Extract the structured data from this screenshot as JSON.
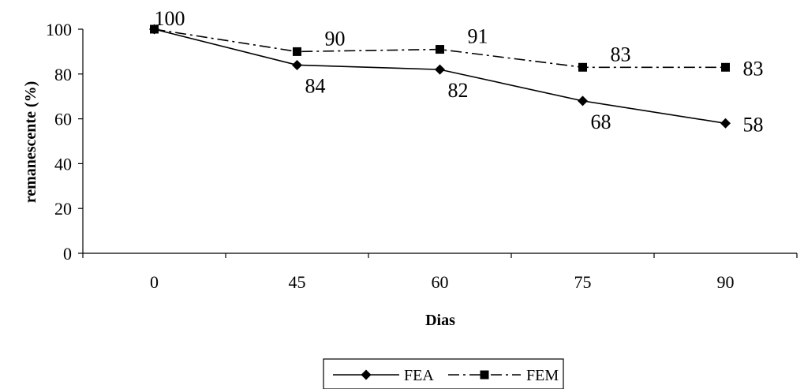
{
  "chart_data": {
    "type": "line",
    "categories": [
      "0",
      "45",
      "60",
      "75",
      "90"
    ],
    "series": [
      {
        "name": "FEA",
        "values": [
          100,
          84,
          82,
          68,
          58
        ],
        "labels": [
          "",
          "84",
          "82",
          "68",
          "58"
        ],
        "marker": "diamond",
        "line_style": "solid",
        "color": "#000000"
      },
      {
        "name": "FEM",
        "values": [
          100,
          90,
          91,
          83,
          83
        ],
        "labels": [
          "100",
          "90",
          "91",
          "83",
          "83"
        ],
        "marker": "square",
        "line_style": "dash-dot",
        "color": "#000000"
      }
    ],
    "ylim": [
      0,
      100
    ],
    "yticks": [
      "0",
      "20",
      "40",
      "60",
      "80",
      "100"
    ],
    "xlabel": "Dias",
    "ylabel": "remanescente (%)",
    "grid": false,
    "legend_position": "bottom-center"
  }
}
